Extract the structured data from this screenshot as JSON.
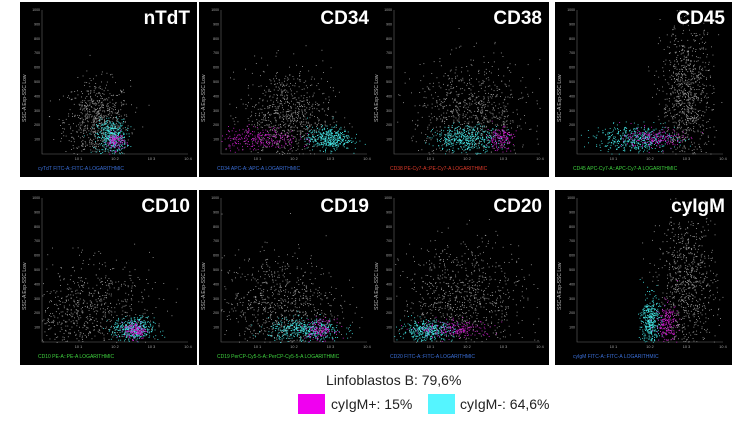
{
  "chart_data": [
    {
      "type": "scatter",
      "marker": "nTdT",
      "xlabel": "cyTdT FITC-A::FITC-A LOGARITHMIC",
      "ylabel": "SSC-A Exp-SSC Low",
      "xlabel_color": "#3a6fd8",
      "scale": "log",
      "ticks_x": [
        "10 1",
        "10 2",
        "10 3",
        "10 4"
      ],
      "ticks_y": [
        "100",
        "200",
        "300",
        "400",
        "500",
        "600",
        "700",
        "800",
        "900",
        "1000"
      ],
      "populations": [
        {
          "name": "cells",
          "color": "#9a9a9a",
          "center": [
            1.5,
            230
          ],
          "spread": [
            0.45,
            140
          ],
          "count": 700
        },
        {
          "name": "cyIgM-",
          "color": "#44e6e6",
          "center": [
            1.9,
            120
          ],
          "spread": [
            0.2,
            60
          ],
          "count": 420
        },
        {
          "name": "cyIgM+",
          "color": "#d21fd2",
          "center": [
            2.0,
            90
          ],
          "spread": [
            0.12,
            30
          ],
          "count": 120
        }
      ]
    },
    {
      "type": "scatter",
      "marker": "CD34",
      "xlabel": "CD34 APC-A::APC-A LOGARITHMIC",
      "ylabel": "SSC-A Exp-SSC Low",
      "xlabel_color": "#3a6fd8",
      "scale": "log",
      "ticks_x": [
        "10 1",
        "10 2",
        "10 3",
        "10 4"
      ],
      "ticks_y": [
        "100",
        "200",
        "300",
        "400",
        "500",
        "600",
        "700",
        "800",
        "900",
        "1000"
      ],
      "populations": [
        {
          "name": "cells",
          "color": "#9a9a9a",
          "center": [
            1.8,
            260
          ],
          "spread": [
            0.6,
            170
          ],
          "count": 800
        },
        {
          "name": "cyIgM-",
          "color": "#44e6e6",
          "center": [
            2.95,
            110
          ],
          "spread": [
            0.3,
            40
          ],
          "count": 420
        },
        {
          "name": "cyIgM+",
          "color": "#d21fd2",
          "center": [
            1.0,
            110
          ],
          "spread": [
            0.55,
            40
          ],
          "count": 260
        }
      ]
    },
    {
      "type": "scatter",
      "marker": "CD38",
      "xlabel": "CD38 PE-Cy7-A::PE-Cy7-A LOGARITHMIC",
      "ylabel": "SSC-A Exp-SSC Low",
      "xlabel_color": "#e03b2a",
      "scale": "log",
      "ticks_x": [
        "10 1",
        "10 2",
        "10 3",
        "10 4"
      ],
      "ticks_y": [
        "100",
        "200",
        "300",
        "400",
        "500",
        "600",
        "700",
        "800",
        "900",
        "1000"
      ],
      "populations": [
        {
          "name": "cells",
          "color": "#9a9a9a",
          "center": [
            2.1,
            280
          ],
          "spread": [
            0.8,
            180
          ],
          "count": 800
        },
        {
          "name": "cyIgM-",
          "color": "#44e6e6",
          "center": [
            2.0,
            110
          ],
          "spread": [
            0.45,
            45
          ],
          "count": 440
        },
        {
          "name": "cyIgM+",
          "color": "#d21fd2",
          "center": [
            2.9,
            110
          ],
          "spread": [
            0.18,
            40
          ],
          "count": 150
        }
      ]
    },
    {
      "type": "scatter",
      "marker": "CD45",
      "xlabel": "CD45 APC-Cy7-A::APC-Cy7-A LOGARITHMIC",
      "ylabel": "SSC-A Exp-SSC Low",
      "xlabel_color": "#3fd43f",
      "scale": "log",
      "ticks_x": [
        "10 1",
        "10 2",
        "10 3",
        "10 4"
      ],
      "ticks_y": [
        "100",
        "200",
        "300",
        "400",
        "500",
        "600",
        "700",
        "800",
        "900",
        "1000"
      ],
      "populations": [
        {
          "name": "cells",
          "color": "#9a9a9a",
          "center": [
            3.0,
            380
          ],
          "spread": [
            0.35,
            260
          ],
          "count": 900
        },
        {
          "name": "cyIgM-",
          "color": "#44e6e6",
          "center": [
            1.6,
            110
          ],
          "spread": [
            0.55,
            45
          ],
          "count": 460
        },
        {
          "name": "cyIgM+",
          "color": "#d21fd2",
          "center": [
            2.1,
            110
          ],
          "spread": [
            0.4,
            35
          ],
          "count": 200
        }
      ]
    },
    {
      "type": "scatter",
      "marker": "CD10",
      "xlabel": "CD10 PE-A::PE-A LOGARITHMIC",
      "ylabel": "SSC-A Exp-SSC Low",
      "xlabel_color": "#3fd43f",
      "scale": "log",
      "ticks_x": [
        "10 1",
        "10 2",
        "10 3",
        "10 4"
      ],
      "ticks_y": [
        "100",
        "200",
        "300",
        "400",
        "500",
        "600",
        "700",
        "800",
        "900",
        "1000"
      ],
      "populations": [
        {
          "name": "cells",
          "color": "#9a9a9a",
          "center": [
            1.2,
            220
          ],
          "spread": [
            0.9,
            170
          ],
          "count": 750
        },
        {
          "name": "cyIgM-",
          "color": "#44e6e6",
          "center": [
            2.5,
            90
          ],
          "spread": [
            0.28,
            40
          ],
          "count": 420
        },
        {
          "name": "cyIgM+",
          "color": "#d21fd2",
          "center": [
            2.55,
            85
          ],
          "spread": [
            0.15,
            30
          ],
          "count": 150
        }
      ]
    },
    {
      "type": "scatter",
      "marker": "CD19",
      "xlabel": "CD19 PerCP-Cy5-5-A::PerCP-Cy5-5-A LOGARITHMIC",
      "ylabel": "SSC-A Exp-SSC Low",
      "xlabel_color": "#3fd43f",
      "scale": "log",
      "ticks_x": [
        "10 1",
        "10 2",
        "10 3",
        "10 4"
      ],
      "ticks_y": [
        "100",
        "200",
        "300",
        "400",
        "500",
        "600",
        "700",
        "800",
        "900",
        "1000"
      ],
      "populations": [
        {
          "name": "cells",
          "color": "#9a9a9a",
          "center": [
            1.6,
            250
          ],
          "spread": [
            0.8,
            180
          ],
          "count": 800
        },
        {
          "name": "cyIgM-",
          "color": "#44e6e6",
          "center": [
            2.3,
            85
          ],
          "spread": [
            0.5,
            40
          ],
          "count": 440
        },
        {
          "name": "cyIgM+",
          "color": "#d21fd2",
          "center": [
            2.7,
            90
          ],
          "spread": [
            0.2,
            35
          ],
          "count": 150
        }
      ]
    },
    {
      "type": "scatter",
      "marker": "CD20",
      "xlabel": "CD20 FITC-A::FITC-A LOGARITHMIC",
      "ylabel": "SSC-A Exp-SSC Low",
      "xlabel_color": "#3a6fd8",
      "scale": "log",
      "ticks_x": [
        "10 1",
        "10 2",
        "10 3",
        "10 4"
      ],
      "ticks_y": [
        "100",
        "200",
        "300",
        "400",
        "500",
        "600",
        "700",
        "800",
        "900",
        "1000"
      ],
      "populations": [
        {
          "name": "cells",
          "color": "#9a9a9a",
          "center": [
            1.9,
            300
          ],
          "spread": [
            0.85,
            200
          ],
          "count": 850
        },
        {
          "name": "cyIgM-",
          "color": "#44e6e6",
          "center": [
            0.9,
            80
          ],
          "spread": [
            0.35,
            35
          ],
          "count": 400
        },
        {
          "name": "cyIgM+",
          "color": "#d21fd2",
          "center": [
            1.7,
            90
          ],
          "spread": [
            0.5,
            30
          ],
          "count": 200
        }
      ]
    },
    {
      "type": "scatter",
      "marker": "cyIgM",
      "xlabel": "cyIgM FITC-A::FITC-A LOGARITHMIC",
      "ylabel": "SSC-A Exp-SSC Low",
      "xlabel_color": "#3a6fd8",
      "scale": "log",
      "ticks_x": [
        "10 1",
        "10 2",
        "10 3",
        "10 4"
      ],
      "ticks_y": [
        "100",
        "200",
        "300",
        "400",
        "500",
        "600",
        "700",
        "800",
        "900",
        "1000"
      ],
      "populations": [
        {
          "name": "cells",
          "color": "#9a9a9a",
          "center": [
            3.0,
            380
          ],
          "spread": [
            0.4,
            260
          ],
          "count": 800
        },
        {
          "name": "cyIgM-",
          "color": "#44e6e6",
          "center": [
            2.0,
            150
          ],
          "spread": [
            0.12,
            90
          ],
          "count": 400
        },
        {
          "name": "cyIgM+",
          "color": "#d21fd2",
          "center": [
            2.45,
            130
          ],
          "spread": [
            0.15,
            70
          ],
          "count": 200
        }
      ]
    }
  ],
  "legend": {
    "title": "Linfoblastos B: 79,6%",
    "items": [
      {
        "label": "cyIgM+: 15%",
        "color": "#f000f0"
      },
      {
        "label": "cyIgM-: 64,6%",
        "color": "#55f5ff"
      }
    ]
  }
}
